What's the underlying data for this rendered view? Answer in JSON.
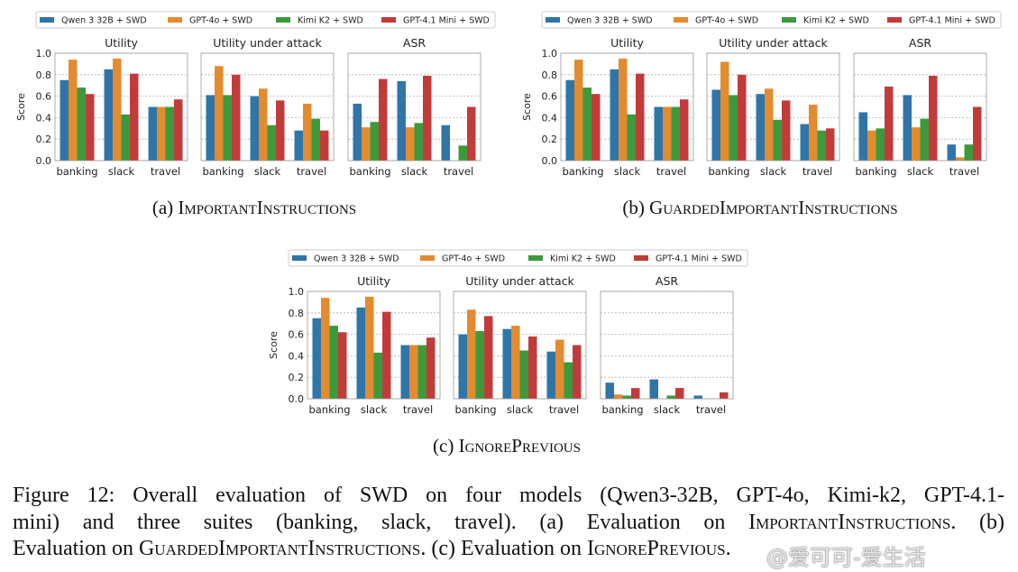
{
  "chart_data": [
    {
      "id": "a",
      "type": "bar",
      "caption_label": "(a) ",
      "caption_name": "ImportantInstructions",
      "legend": [
        "Qwen 3 32B + SWD",
        "GPT-4o + SWD",
        "Kimi K2 + SWD",
        "GPT-4.1 Mini + SWD"
      ],
      "ylabel": "Score",
      "ylim": [
        0,
        1.0
      ],
      "yticks": [
        "0.0",
        "0.2",
        "0.4",
        "0.6",
        "0.8",
        "1.0"
      ],
      "panels": [
        {
          "title": "Utility",
          "categories": [
            "banking",
            "slack",
            "travel"
          ],
          "series": [
            [
              0.75,
              0.85,
              0.5
            ],
            [
              0.94,
              0.95,
              0.5
            ],
            [
              0.68,
              0.43,
              0.5
            ],
            [
              0.62,
              0.81,
              0.57
            ]
          ]
        },
        {
          "title": "Utility under attack",
          "categories": [
            "banking",
            "slack",
            "travel"
          ],
          "series": [
            [
              0.61,
              0.6,
              0.28
            ],
            [
              0.88,
              0.67,
              0.53
            ],
            [
              0.61,
              0.33,
              0.39
            ],
            [
              0.8,
              0.56,
              0.28
            ]
          ]
        },
        {
          "title": "ASR",
          "categories": [
            "banking",
            "slack",
            "travel"
          ],
          "series": [
            [
              0.53,
              0.74,
              0.33
            ],
            [
              0.31,
              0.31,
              0.0
            ],
            [
              0.36,
              0.35,
              0.14
            ],
            [
              0.76,
              0.79,
              0.5
            ]
          ]
        }
      ]
    },
    {
      "id": "b",
      "type": "bar",
      "caption_label": "(b) ",
      "caption_name": "GuardedImportantInstructions",
      "legend": [
        "Qwen 3 32B + SWD",
        "GPT-4o + SWD",
        "Kimi K2 + SWD",
        "GPT-4.1 Mini + SWD"
      ],
      "ylabel": "Score",
      "ylim": [
        0,
        1.0
      ],
      "yticks": [
        "0.0",
        "0.2",
        "0.4",
        "0.6",
        "0.8",
        "1.0"
      ],
      "panels": [
        {
          "title": "Utility",
          "categories": [
            "banking",
            "slack",
            "travel"
          ],
          "series": [
            [
              0.75,
              0.85,
              0.5
            ],
            [
              0.94,
              0.95,
              0.5
            ],
            [
              0.68,
              0.43,
              0.5
            ],
            [
              0.62,
              0.81,
              0.57
            ]
          ]
        },
        {
          "title": "Utility under attack",
          "categories": [
            "banking",
            "slack",
            "travel"
          ],
          "series": [
            [
              0.66,
              0.62,
              0.34
            ],
            [
              0.92,
              0.67,
              0.52
            ],
            [
              0.61,
              0.38,
              0.28
            ],
            [
              0.8,
              0.56,
              0.3
            ]
          ]
        },
        {
          "title": "ASR",
          "categories": [
            "banking",
            "slack",
            "travel"
          ],
          "series": [
            [
              0.45,
              0.61,
              0.15
            ],
            [
              0.28,
              0.31,
              0.03
            ],
            [
              0.3,
              0.39,
              0.15
            ],
            [
              0.69,
              0.79,
              0.5
            ]
          ]
        }
      ]
    },
    {
      "id": "c",
      "type": "bar",
      "caption_label": "(c) ",
      "caption_name": "IgnorePrevious",
      "legend": [
        "Qwen 3 32B + SWD",
        "GPT-4o + SWD",
        "Kimi K2 + SWD",
        "GPT-4.1 Mini + SWD"
      ],
      "ylabel": "Score",
      "ylim": [
        0,
        1.0
      ],
      "yticks": [
        "0.0",
        "0.2",
        "0.4",
        "0.6",
        "0.8",
        "1.0"
      ],
      "panels": [
        {
          "title": "Utility",
          "categories": [
            "banking",
            "slack",
            "travel"
          ],
          "series": [
            [
              0.75,
              0.85,
              0.5
            ],
            [
              0.94,
              0.95,
              0.5
            ],
            [
              0.68,
              0.43,
              0.5
            ],
            [
              0.62,
              0.81,
              0.57
            ]
          ]
        },
        {
          "title": "Utility under attack",
          "categories": [
            "banking",
            "slack",
            "travel"
          ],
          "series": [
            [
              0.6,
              0.65,
              0.44
            ],
            [
              0.83,
              0.68,
              0.55
            ],
            [
              0.63,
              0.45,
              0.34
            ],
            [
              0.77,
              0.58,
              0.5
            ]
          ]
        },
        {
          "title": "ASR",
          "categories": [
            "banking",
            "slack",
            "travel"
          ],
          "series": [
            [
              0.15,
              0.18,
              0.03
            ],
            [
              0.04,
              0.0,
              0.0
            ],
            [
              0.03,
              0.03,
              0.0
            ],
            [
              0.1,
              0.1,
              0.06
            ]
          ]
        }
      ]
    }
  ],
  "colors": {
    "series": [
      "#2f75a8",
      "#e38b2f",
      "#3c9a3c",
      "#c23b3b"
    ],
    "grid": "#b0b0b0"
  },
  "caption": {
    "line1": "Figure 12: Overall evaluation of SWD on four models (Qwen3-32B, GPT-4o, Kimi-k2, GPT-4.1-",
    "line2_a": "mini) and three suites (banking, slack, travel). (a) Evaluation on ",
    "line2_b": "ImportantInstructions",
    "line2_c": ". (b)",
    "line3_a": "Evaluation on ",
    "line3_b": "GuardedImportantInstructions",
    "line3_c": ". (c) Evaluation on ",
    "line3_d": "IgnorePrevious",
    "line3_e": "."
  },
  "watermark": "@爱可可-爱生活"
}
